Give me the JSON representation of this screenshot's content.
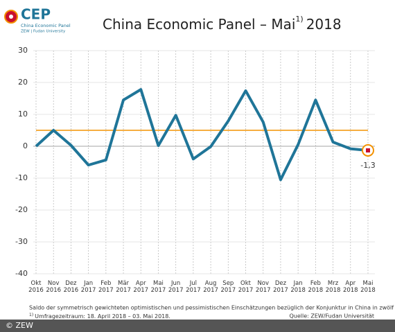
{
  "logo": {
    "name": "CEP",
    "line1": "China Economic Panel",
    "line2": "ZEW | Fudan University"
  },
  "chart_data": {
    "type": "line",
    "title": "China Economic Panel – Mai",
    "title_sup": "1)",
    "title_year": "2018",
    "categories": [
      "Okt 2016",
      "Nov 2016",
      "Dez 2016",
      "Jan 2017",
      "Feb 2017",
      "Mär 2017",
      "Apr 2017",
      "Mai 2017",
      "Jun 2017",
      "Jul 2017",
      "Aug 2017",
      "Sep 2017",
      "Okt 2017",
      "Nov 2017",
      "Dez 2017",
      "Jan 2018",
      "Feb 2018",
      "Mrz 2018",
      "Apr 2018",
      "Mai 2018"
    ],
    "series": [
      {
        "color": "#1f7598",
        "values": [
          0.0,
          5.0,
          0.3,
          -5.9,
          -4.3,
          14.5,
          17.8,
          0.2,
          9.7,
          -4.0,
          -0.1,
          7.9,
          17.4,
          7.6,
          -10.5,
          0.5,
          14.5,
          1.3,
          -0.8,
          -1.3
        ],
        "value_labels": [
          null,
          null,
          null,
          null,
          null,
          null,
          null,
          null,
          null,
          null,
          null,
          null,
          null,
          null,
          null,
          null,
          null,
          null,
          null,
          "-1,3"
        ]
      }
    ],
    "reference_line": {
      "value": 5.0,
      "color": "#f39200"
    },
    "ylim": [
      -40,
      30
    ],
    "yticks": [
      -40,
      -30,
      -20,
      -10,
      0,
      10,
      20,
      30
    ],
    "grid": true
  },
  "footer": {
    "note": "Saldo der symmetrisch gewichteten optimistischen und pessimistischen Einschätzungen bezüglich der Konjunktur in China in zwölf Monaten.",
    "note_sup": "1)",
    "note2": "Umfragezeitraum: 18. April 2018 – 03. Mai 2018.",
    "source": "Quelle: ZEW/Fudan Universität",
    "copyright": "© ZEW"
  }
}
